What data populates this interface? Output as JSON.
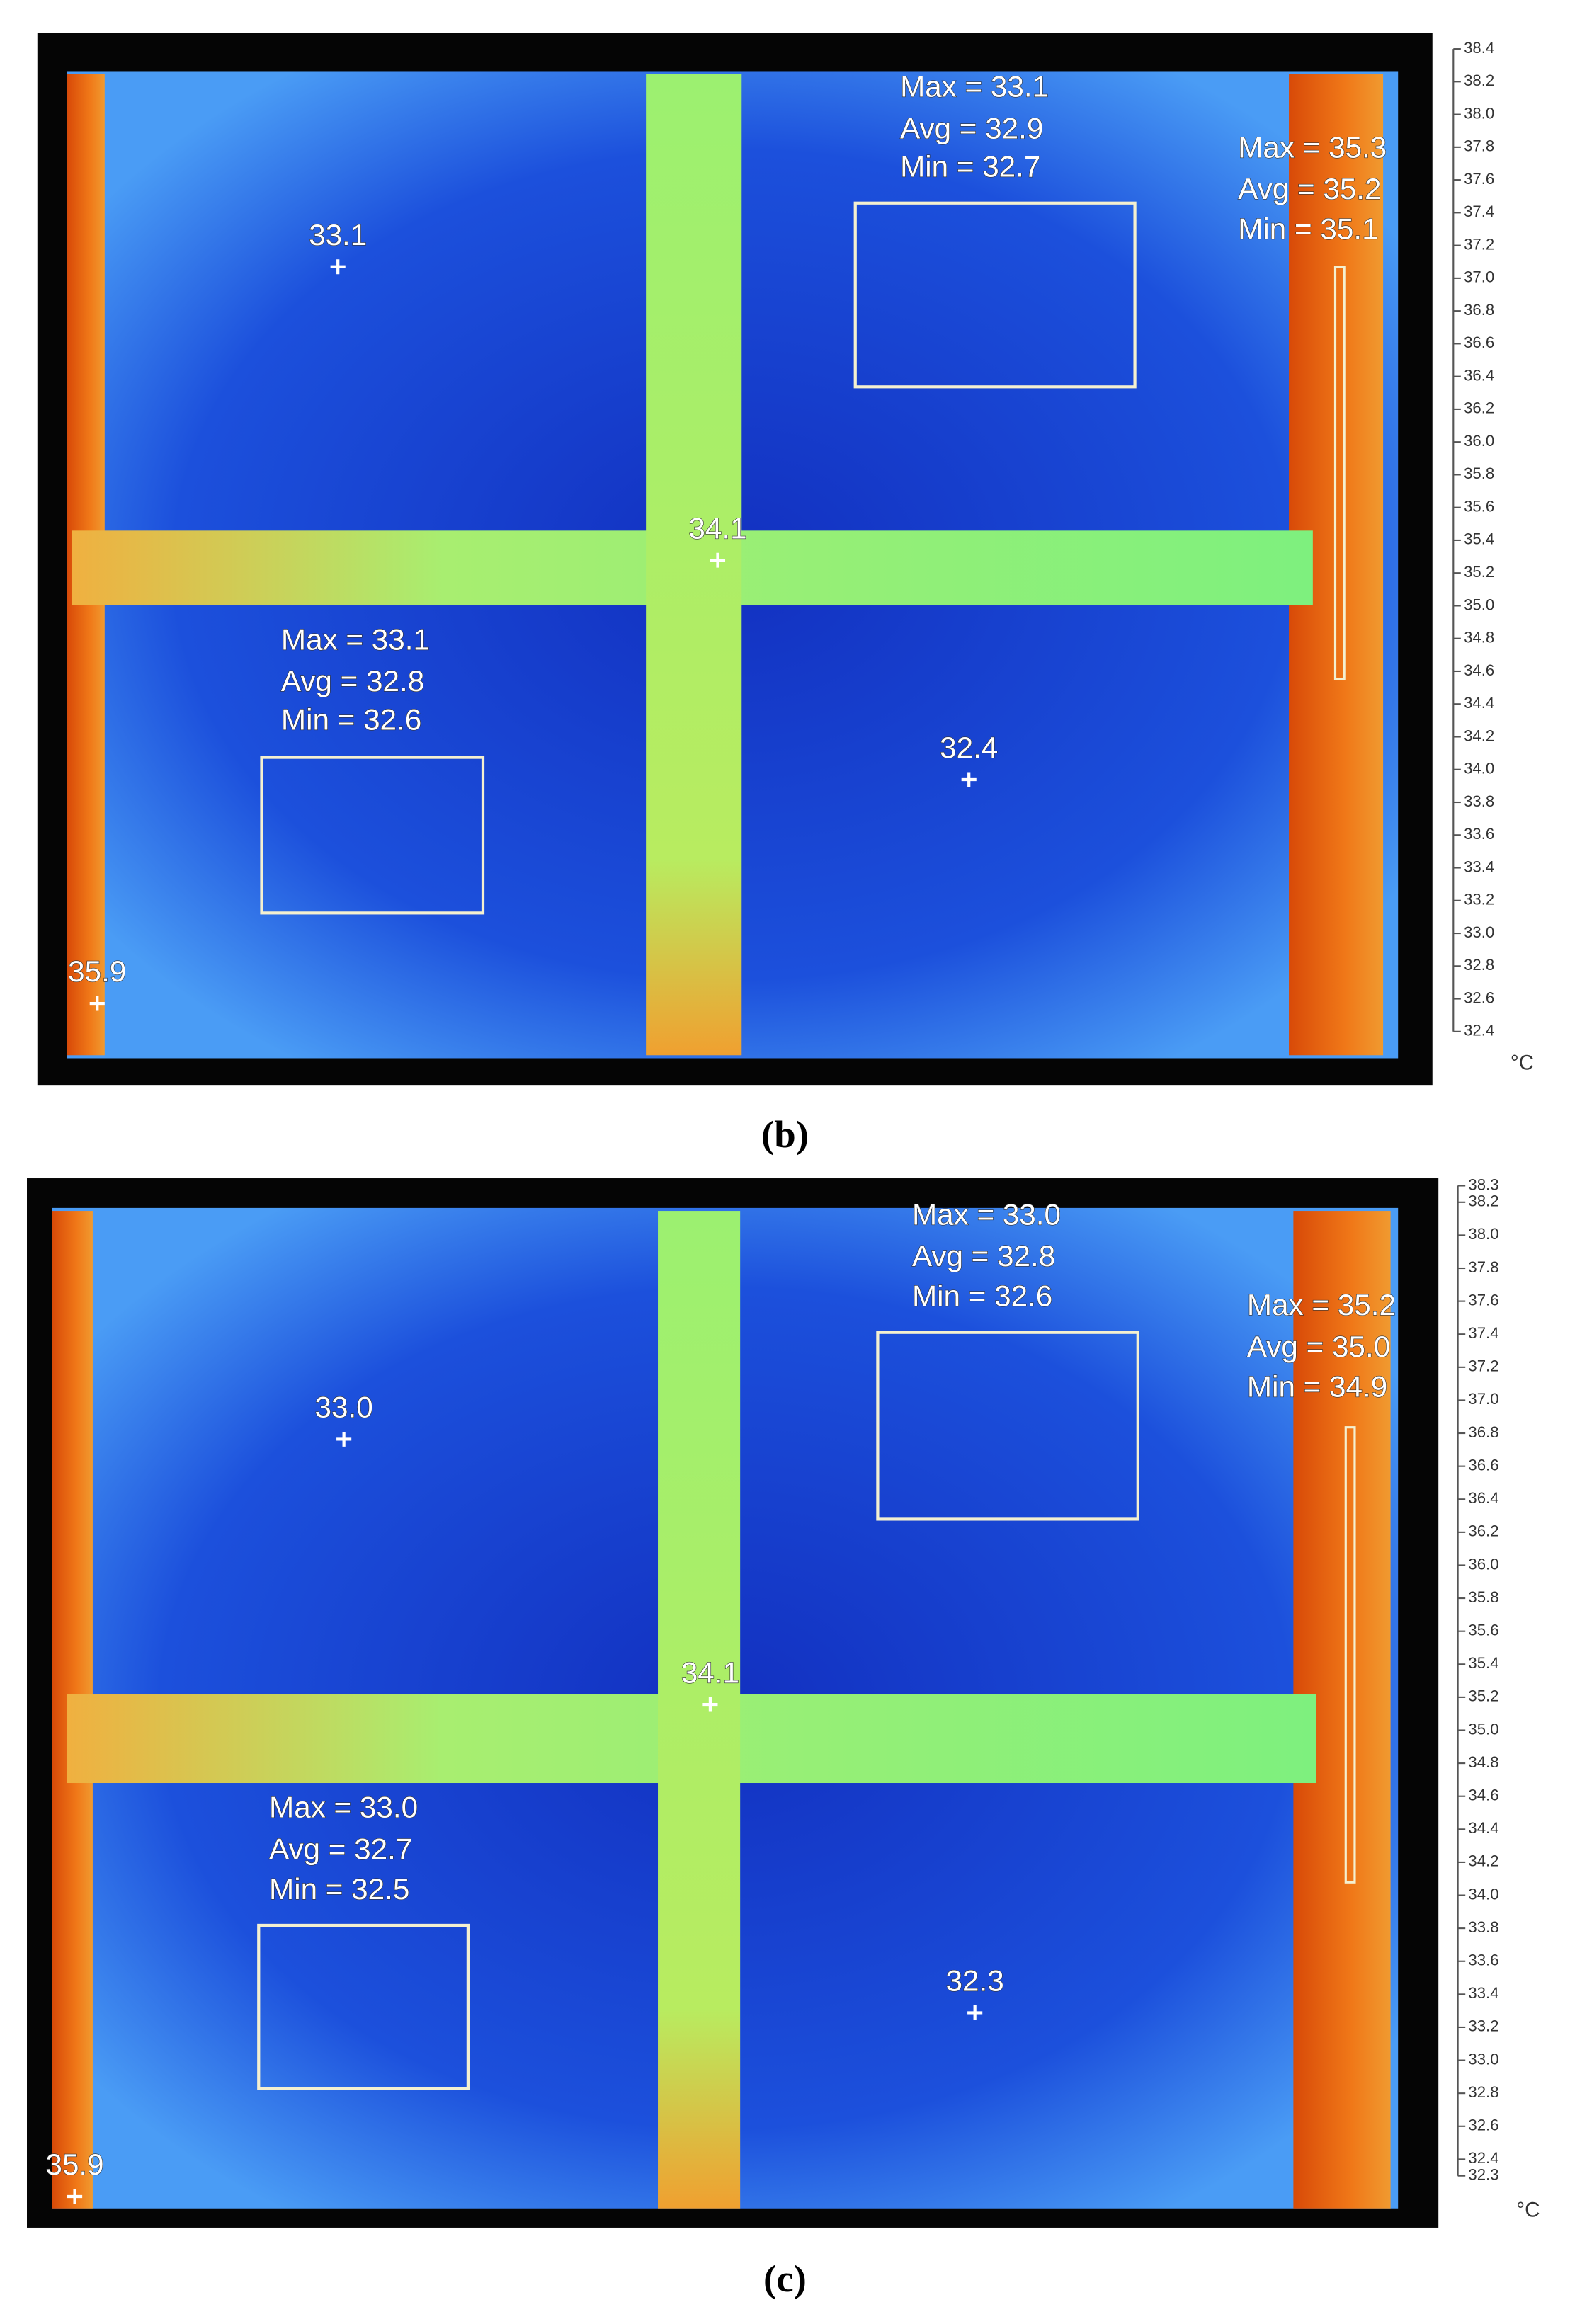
{
  "panels": [
    {
      "caption": "(b)",
      "spots": [
        "33.1",
        "34.1",
        "32.4",
        "35.9"
      ],
      "boxes": [
        {
          "max": "Max = 33.1",
          "avg": "Avg = 32.9",
          "min": "Min = 32.7"
        },
        {
          "max": "Max = 33.1",
          "avg": "Avg = 32.8",
          "min": "Min = 32.6"
        }
      ],
      "line": {
        "max": "Max = 35.3",
        "avg": "Avg = 35.2",
        "min": "Min = 35.1"
      },
      "scale_ticks": [
        "38.4",
        "38.2",
        "38.0",
        "37.8",
        "37.6",
        "37.4",
        "37.2",
        "37.0",
        "36.8",
        "36.6",
        "36.4",
        "36.2",
        "36.0",
        "35.8",
        "35.6",
        "35.4",
        "35.2",
        "35.0",
        "34.8",
        "34.6",
        "34.4",
        "34.2",
        "34.0",
        "33.8",
        "33.6",
        "33.4",
        "33.2",
        "33.0",
        "32.8",
        "32.6",
        "32.4"
      ],
      "unit": "°C"
    },
    {
      "caption": "(c)",
      "spots": [
        "33.0",
        "34.1",
        "32.3",
        "35.9"
      ],
      "boxes": [
        {
          "max": "Max = 33.0",
          "avg": "Avg = 32.8",
          "min": "Min = 32.6"
        },
        {
          "max": "Max = 33.0",
          "avg": "Avg = 32.7",
          "min": "Min = 32.5"
        }
      ],
      "line": {
        "max": "Max = 35.2",
        "avg": "Avg = 35.0",
        "min": "Min = 34.9"
      },
      "scale_ticks": [
        "38.3",
        "38.2",
        "38.0",
        "37.8",
        "37.6",
        "37.4",
        "37.2",
        "37.0",
        "36.8",
        "36.6",
        "36.4",
        "36.2",
        "36.0",
        "35.8",
        "35.6",
        "35.4",
        "35.2",
        "35.0",
        "34.8",
        "34.6",
        "34.4",
        "34.2",
        "34.0",
        "33.8",
        "33.6",
        "33.4",
        "33.2",
        "33.0",
        "32.8",
        "32.6",
        "32.4",
        "32.3"
      ],
      "unit": "°C"
    }
  ]
}
